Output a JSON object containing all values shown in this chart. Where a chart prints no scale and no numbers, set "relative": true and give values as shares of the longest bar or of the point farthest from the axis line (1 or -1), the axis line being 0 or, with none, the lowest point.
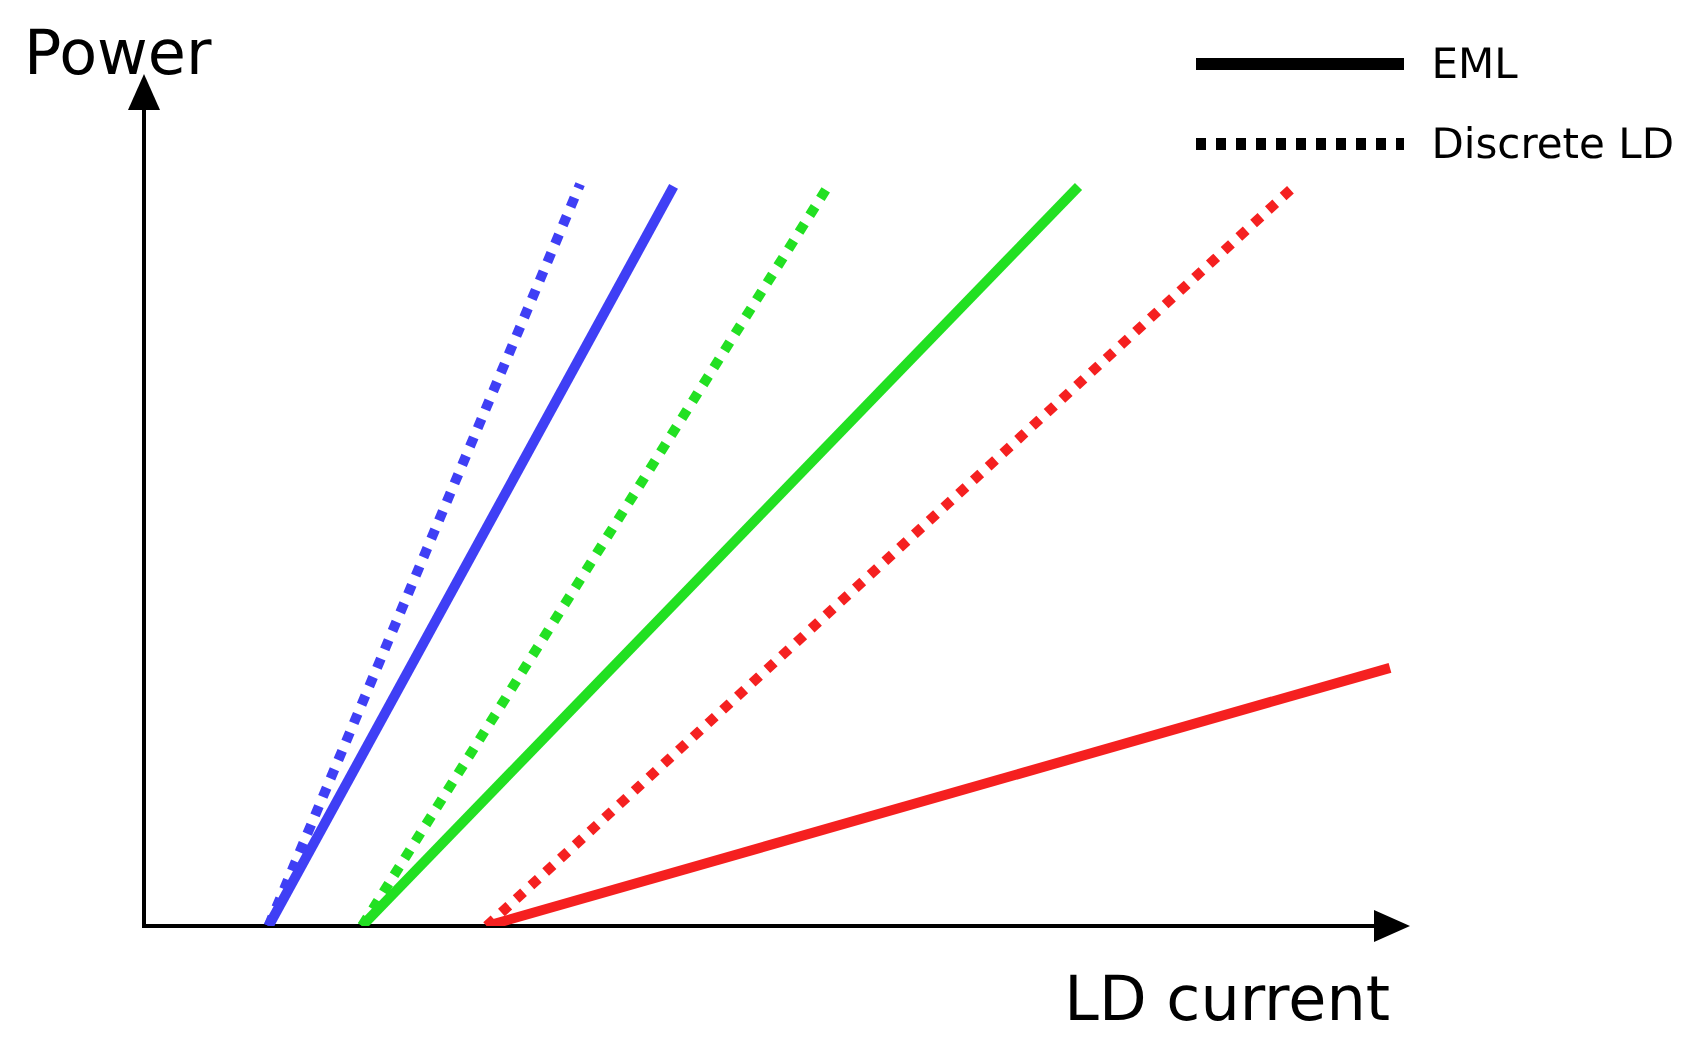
{
  "chart_data": {
    "type": "line",
    "relative": true,
    "xlabel": "LD current",
    "ylabel": "Power",
    "legend": "top right",
    "categories": [
      null,
      null,
      null,
      null,
      null,
      null,
      null,
      null,
      null,
      null,
      null,
      null,
      null,
      null,
      null,
      null,
      null,
      null,
      null,
      null,
      null,
      null,
      null,
      null,
      null,
      null,
      null,
      null,
      null,
      null,
      null,
      null,
      null,
      null,
      null,
      null,
      null,
      null,
      null,
      null,
      null
    ],
    "series": [
      {
        "color": "#3f3ff5",
        "line_style": "dotted",
        "values": [
          null,
          null,
          null,
          null,
          0,
          null,
          null,
          null,
          null,
          null,
          null,
          null,
          null,
          null,
          1,
          null,
          null,
          null,
          null,
          null,
          null,
          null,
          null,
          null,
          null,
          null,
          null,
          null,
          null,
          null,
          null,
          null,
          null,
          null,
          null,
          null,
          null,
          null,
          null,
          null,
          null
        ]
      },
      {
        "color": "#3f3ff5",
        "line_style": "solid",
        "values": [
          null,
          null,
          null,
          null,
          0,
          null,
          null,
          null,
          null,
          null,
          null,
          null,
          null,
          null,
          null,
          null,
          null,
          0.997,
          null,
          null,
          null,
          null,
          null,
          null,
          null,
          null,
          null,
          null,
          null,
          null,
          null,
          null,
          null,
          null,
          null,
          null,
          null,
          null,
          null,
          null,
          null
        ]
      },
      {
        "color": "#22e022",
        "line_style": "dotted",
        "values": [
          null,
          null,
          null,
          null,
          null,
          null,
          null,
          0,
          null,
          null,
          null,
          null,
          null,
          null,
          null,
          null,
          null,
          null,
          null,
          null,
          null,
          null,
          1,
          null,
          null,
          null,
          null,
          null,
          null,
          null,
          null,
          null,
          null,
          null,
          null,
          null,
          null,
          null,
          null,
          null,
          null
        ]
      },
      {
        "color": "#22e022",
        "line_style": "solid",
        "values": [
          null,
          null,
          null,
          null,
          null,
          null,
          null,
          0,
          null,
          null,
          null,
          null,
          null,
          null,
          null,
          null,
          null,
          null,
          null,
          null,
          null,
          null,
          null,
          null,
          null,
          null,
          null,
          null,
          null,
          null,
          0.997,
          null,
          null,
          null,
          null,
          null,
          null,
          null,
          null,
          null,
          null
        ]
      },
      {
        "color": "#f52020",
        "line_style": "dotted",
        "values": [
          null,
          null,
          null,
          null,
          null,
          null,
          null,
          null,
          null,
          null,
          null,
          0,
          null,
          null,
          null,
          null,
          null,
          null,
          null,
          null,
          null,
          null,
          null,
          null,
          null,
          null,
          null,
          null,
          null,
          null,
          null,
          null,
          null,
          null,
          null,
          null,
          null,
          1,
          null,
          null,
          null
        ]
      },
      {
        "color": "#f52020",
        "line_style": "solid",
        "values": [
          null,
          null,
          null,
          null,
          null,
          null,
          null,
          null,
          null,
          null,
          null,
          0,
          null,
          null,
          null,
          null,
          null,
          null,
          null,
          null,
          null,
          null,
          null,
          null,
          null,
          null,
          null,
          null,
          null,
          null,
          null,
          null,
          null,
          null,
          null,
          null,
          null,
          null,
          null,
          null,
          0.348
        ]
      },
      {
        "name": "EML",
        "color": "#000000",
        "line_style": "solid",
        "values": [
          null,
          null,
          null,
          null,
          null,
          null,
          null,
          null,
          null,
          null,
          null,
          null,
          null,
          null,
          null,
          null,
          null,
          null,
          null,
          null,
          null,
          null,
          null,
          null,
          null,
          null,
          null,
          null,
          null,
          null,
          null,
          null,
          null,
          null,
          null,
          null,
          null,
          null,
          null,
          null,
          null
        ]
      },
      {
        "name": "Discrete LD",
        "color": "#000000",
        "line_style": "dotted",
        "values": [
          null,
          null,
          null,
          null,
          null,
          null,
          null,
          null,
          null,
          null,
          null,
          null,
          null,
          null,
          null,
          null,
          null,
          null,
          null,
          null,
          null,
          null,
          null,
          null,
          null,
          null,
          null,
          null,
          null,
          null,
          null,
          null,
          null,
          null,
          null,
          null,
          null,
          null,
          null,
          null,
          null
        ]
      }
    ]
  }
}
